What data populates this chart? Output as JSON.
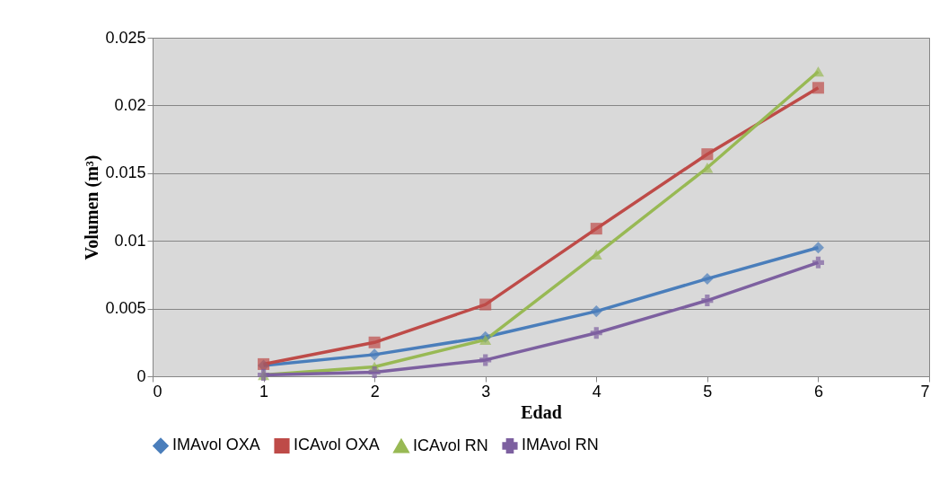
{
  "chart_data": {
    "type": "line",
    "xlabel": "Edad",
    "ylabel": "Volumen (m³)",
    "x": [
      1,
      2,
      3,
      4,
      5,
      6
    ],
    "series": [
      {
        "name": "IMAvol OXA",
        "color": "#4a7ebb",
        "marker": "diamond",
        "values": [
          0.0008,
          0.0016,
          0.0029,
          0.0048,
          0.0072,
          0.0095
        ]
      },
      {
        "name": "ICAvol OXA",
        "color": "#be4b48",
        "marker": "square",
        "values": [
          0.0009,
          0.0025,
          0.0053,
          0.0109,
          0.0164,
          0.0213
        ]
      },
      {
        "name": "ICAvol RN",
        "color": "#98b954",
        "marker": "triangle",
        "values": [
          0.0001,
          0.0007,
          0.0027,
          0.009,
          0.0154,
          0.0225
        ]
      },
      {
        "name": "IMAvol RN",
        "color": "#7d60a0",
        "marker": "cross",
        "values": [
          0.0001,
          0.0003,
          0.0012,
          0.0032,
          0.0056,
          0.0084
        ]
      }
    ],
    "xlim": [
      0,
      7
    ],
    "xticks": [
      0,
      1,
      2,
      3,
      4,
      5,
      6,
      7
    ],
    "ylim": [
      0,
      0.025
    ],
    "yticks": [
      0,
      0.005,
      0.01,
      0.015,
      0.02,
      0.025
    ],
    "grid": "y",
    "legend": "bottom",
    "line_style": "solid"
  }
}
